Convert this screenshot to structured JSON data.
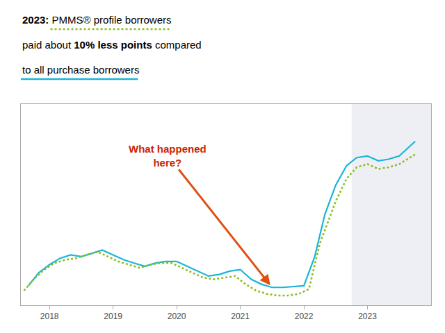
{
  "chart_data": {
    "type": "line",
    "annotations": [
      {
        "text": "2023:"
      },
      {
        "text": "PMMS® profile borrowers"
      },
      {
        "text": "paid about"
      },
      {
        "text": "10% less points"
      },
      {
        "text": "compared"
      },
      {
        "text": "to all purchase borrowers"
      },
      {
        "text": "What happened\nhere?",
        "color": "#cc2200",
        "arrow_color": "#e05010"
      }
    ],
    "series": [
      {
        "color": "#1ab5d8",
        "line_style": "solid",
        "x": [
          2017.67,
          2017.83,
          2018.0,
          2018.17,
          2018.33,
          2018.5,
          2018.67,
          2018.83,
          2019.0,
          2019.17,
          2019.33,
          2019.5,
          2019.67,
          2019.83,
          2020.0,
          2020.17,
          2020.33,
          2020.5,
          2020.67,
          2020.83,
          2021.0,
          2021.17,
          2021.33,
          2021.5,
          2021.67,
          2021.83,
          2022.0,
          2022.17,
          2022.33,
          2022.5,
          2022.67,
          2022.83,
          2023.0,
          2023.17,
          2023.33,
          2023.5,
          2023.75
        ],
        "values": [
          2.9,
          3.3,
          3.55,
          3.75,
          3.85,
          3.8,
          3.9,
          4.0,
          3.85,
          3.7,
          3.6,
          3.5,
          3.6,
          3.65,
          3.65,
          3.5,
          3.35,
          3.2,
          3.25,
          3.35,
          3.4,
          3.1,
          2.95,
          2.85,
          2.85,
          2.88,
          2.9,
          3.8,
          5.1,
          6.0,
          6.6,
          6.85,
          6.9,
          6.75,
          6.8,
          6.9,
          7.35
        ]
      },
      {
        "color": "#8bbf22",
        "line_style": "dotted",
        "x": [
          2017.6,
          2017.75,
          2017.92,
          2018.08,
          2018.25,
          2018.42,
          2018.58,
          2018.75,
          2018.92,
          2019.08,
          2019.25,
          2019.42,
          2019.58,
          2019.75,
          2019.92,
          2020.08,
          2020.25,
          2020.42,
          2020.58,
          2020.75,
          2020.92,
          2021.08,
          2021.25,
          2021.42,
          2021.58,
          2021.75,
          2021.92,
          2022.08,
          2022.25,
          2022.5,
          2022.67,
          2022.83,
          2023.0,
          2023.17,
          2023.33,
          2023.5,
          2023.75
        ],
        "values": [
          2.75,
          3.1,
          3.4,
          3.6,
          3.7,
          3.75,
          3.85,
          3.95,
          3.8,
          3.65,
          3.55,
          3.45,
          3.55,
          3.6,
          3.6,
          3.45,
          3.3,
          3.15,
          3.1,
          3.15,
          3.2,
          2.95,
          2.75,
          2.65,
          2.6,
          2.6,
          2.65,
          2.8,
          4.2,
          5.5,
          6.2,
          6.55,
          6.65,
          6.5,
          6.55,
          6.65,
          6.95
        ]
      }
    ],
    "xlim": [
      2017.55,
      2024.0
    ],
    "ylim": [
      2.3,
      8.5
    ],
    "xticks": [
      2018,
      2019,
      2020,
      2021,
      2022,
      2023
    ],
    "grid": false,
    "tick_labels": "x",
    "shade": {
      "from": 2022.75,
      "color": "#eeeff5"
    }
  }
}
